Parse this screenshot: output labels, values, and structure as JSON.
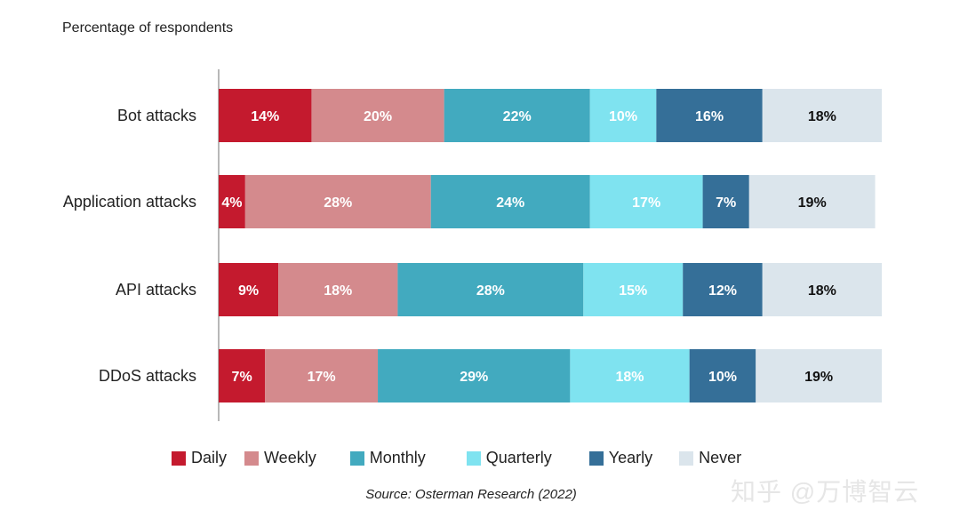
{
  "chart_data": {
    "type": "bar",
    "orientation": "horizontal",
    "stacked": true,
    "subtitle": "Percentage of respondents",
    "categories": [
      "Bot attacks",
      "Application attacks",
      "API attacks",
      "DDoS attacks"
    ],
    "series": [
      {
        "name": "Daily",
        "color": "#C41A2E",
        "label_color": "#ffffff",
        "values": [
          14,
          4,
          9,
          7
        ]
      },
      {
        "name": "Weekly",
        "color": "#D48A8D",
        "label_color": "#ffffff",
        "values": [
          20,
          28,
          18,
          17
        ]
      },
      {
        "name": "Monthly",
        "color": "#42AABF",
        "label_color": "#ffffff",
        "values": [
          22,
          24,
          28,
          29
        ]
      },
      {
        "name": "Quarterly",
        "color": "#7FE3F0",
        "label_color": "#ffffff",
        "values": [
          10,
          17,
          15,
          18
        ]
      },
      {
        "name": "Yearly",
        "color": "#356F98",
        "label_color": "#ffffff",
        "values": [
          16,
          7,
          12,
          10
        ]
      },
      {
        "name": "Never",
        "color": "#DBE5EC",
        "label_color": "#111111",
        "values": [
          18,
          19,
          18,
          19
        ]
      }
    ],
    "value_suffix": "%",
    "xlim": [
      0,
      100
    ],
    "grid": false,
    "legend_position": "bottom",
    "source": "Source: Osterman Research (2022)"
  },
  "watermark": "知乎 @万博智云"
}
